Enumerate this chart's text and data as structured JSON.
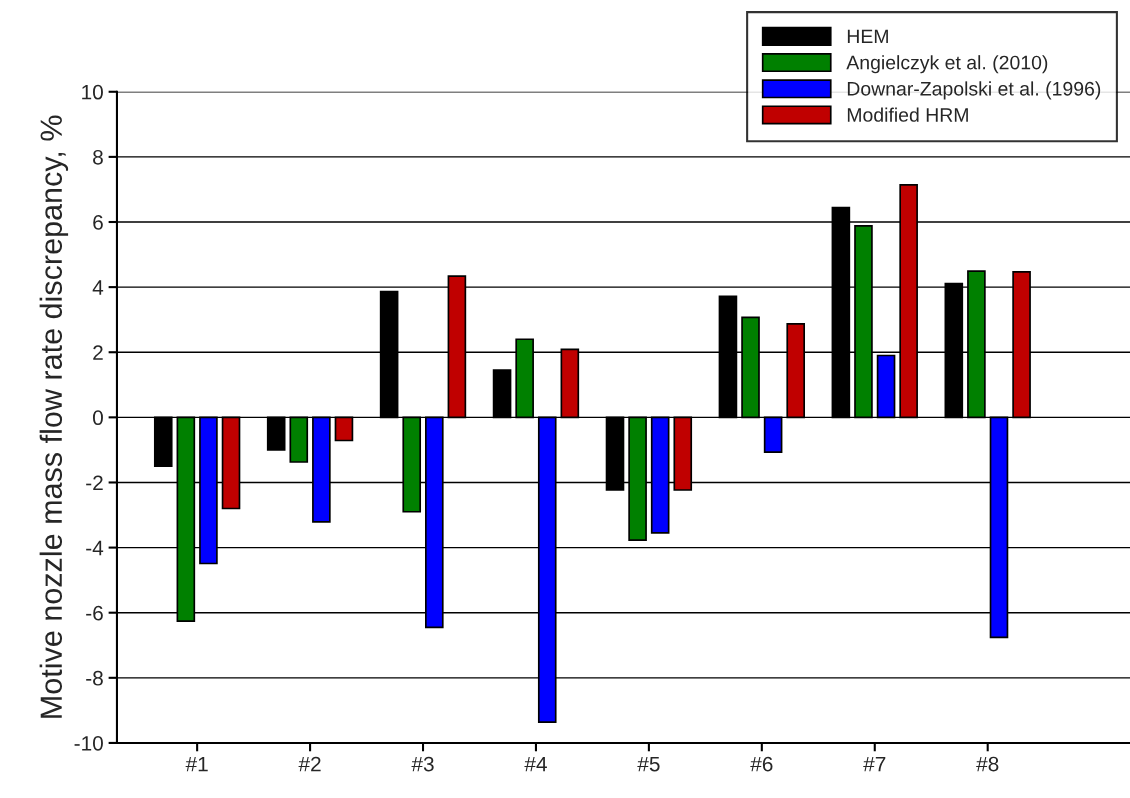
{
  "chart_data": {
    "type": "bar",
    "ylabel": "Motive nozzle mass flow rate discrepancy, %",
    "categories": [
      "#1",
      "#2",
      "#3",
      "#4",
      "#5",
      "#6",
      "#7",
      "#8"
    ],
    "series": [
      {
        "name": "HEM",
        "color": "#000000",
        "values": [
          -1.5,
          -1.0,
          3.86,
          1.45,
          -2.23,
          3.72,
          6.44,
          4.11
        ]
      },
      {
        "name": "Angielczyk et al. (2010)",
        "color": "#008000",
        "values": [
          -6.26,
          -1.37,
          -2.9,
          2.4,
          -3.77,
          3.07,
          5.88,
          4.49
        ]
      },
      {
        "name": "Downar-Zapolski et al. (1996)",
        "color": "#0000ff",
        "values": [
          -4.49,
          -3.21,
          -6.45,
          -9.36,
          -3.55,
          -1.07,
          1.9,
          -6.76
        ]
      },
      {
        "name": "Modified HRM",
        "color": "#c00000",
        "values": [
          -2.8,
          -0.71,
          4.34,
          2.09,
          -2.23,
          2.87,
          7.14,
          4.47
        ]
      }
    ],
    "ylim": [
      -10,
      10
    ],
    "yticks": [
      -10,
      -8,
      -6,
      -4,
      -2,
      0,
      2,
      4,
      6,
      8,
      10
    ],
    "grid": "y",
    "legend": "top right"
  }
}
